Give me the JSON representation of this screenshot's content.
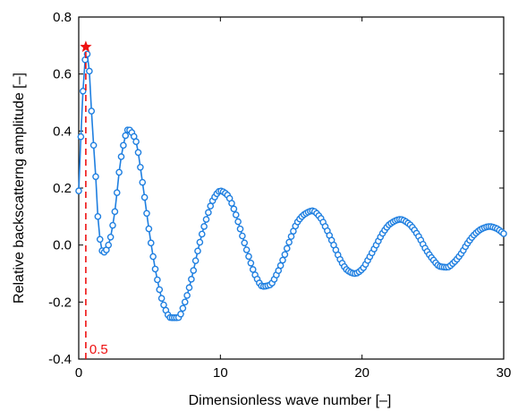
{
  "chart_data": {
    "type": "scatter",
    "xlabel": "Dimensionless wave number [–]",
    "ylabel": "Relative backscatterng amplitude [–]",
    "xlim": [
      0,
      30
    ],
    "ylim": [
      -0.4,
      0.8
    ],
    "x_ticks": [
      0,
      10,
      20,
      30
    ],
    "y_ticks": [
      -0.4,
      -0.2,
      0.0,
      0.2,
      0.4,
      0.6,
      0.8
    ],
    "x_tick_labels": [
      "0",
      "10",
      "20",
      "30"
    ],
    "y_tick_labels": [
      "-0.4",
      "-0.2",
      "0.0",
      "0.2",
      "0.4",
      "0.6",
      "0.8"
    ],
    "grid": false,
    "series_color": "#1f7fe0",
    "marker": "open-circle",
    "x_step": 0.15,
    "curve_points": [
      {
        "x": 0.0,
        "y": 0.19
      },
      {
        "x": 0.15,
        "y": 0.38
      },
      {
        "x": 0.3,
        "y": 0.54
      },
      {
        "x": 0.45,
        "y": 0.65
      },
      {
        "x": 0.6,
        "y": 0.67
      },
      {
        "x": 0.75,
        "y": 0.61
      },
      {
        "x": 0.9,
        "y": 0.47
      },
      {
        "x": 1.05,
        "y": 0.35
      },
      {
        "x": 1.2,
        "y": 0.24
      },
      {
        "x": 1.35,
        "y": 0.1
      },
      {
        "x": 1.5,
        "y": 0.02
      },
      {
        "x": 1.65,
        "y": -0.02
      },
      {
        "x": 1.8,
        "y": -0.025
      },
      {
        "x": 2.1,
        "y": 0.0
      },
      {
        "x": 2.5,
        "y": 0.1
      },
      {
        "x": 3.0,
        "y": 0.31
      },
      {
        "x": 3.5,
        "y": 0.405
      },
      {
        "x": 4.0,
        "y": 0.37
      },
      {
        "x": 4.5,
        "y": 0.22
      },
      {
        "x": 5.0,
        "y": 0.04
      },
      {
        "x": 5.5,
        "y": -0.11
      },
      {
        "x": 6.0,
        "y": -0.21
      },
      {
        "x": 6.5,
        "y": -0.255
      },
      {
        "x": 7.0,
        "y": -0.255
      },
      {
        "x": 7.5,
        "y": -0.2
      },
      {
        "x": 8.0,
        "y": -0.11
      },
      {
        "x": 8.5,
        "y": 0.0
      },
      {
        "x": 9.0,
        "y": 0.09
      },
      {
        "x": 9.5,
        "y": 0.16
      },
      {
        "x": 10.0,
        "y": 0.19
      },
      {
        "x": 10.5,
        "y": 0.175
      },
      {
        "x": 11.0,
        "y": 0.12
      },
      {
        "x": 11.5,
        "y": 0.04
      },
      {
        "x": 12.0,
        "y": -0.04
      },
      {
        "x": 12.5,
        "y": -0.11
      },
      {
        "x": 13.0,
        "y": -0.145
      },
      {
        "x": 13.5,
        "y": -0.14
      },
      {
        "x": 14.0,
        "y": -0.1
      },
      {
        "x": 14.5,
        "y": -0.04
      },
      {
        "x": 15.0,
        "y": 0.03
      },
      {
        "x": 15.5,
        "y": 0.085
      },
      {
        "x": 16.0,
        "y": 0.11
      },
      {
        "x": 16.5,
        "y": 0.12
      },
      {
        "x": 17.0,
        "y": 0.1
      },
      {
        "x": 17.5,
        "y": 0.055
      },
      {
        "x": 18.0,
        "y": 0.0
      },
      {
        "x": 18.5,
        "y": -0.055
      },
      {
        "x": 19.0,
        "y": -0.09
      },
      {
        "x": 19.5,
        "y": -0.1
      },
      {
        "x": 20.0,
        "y": -0.085
      },
      {
        "x": 20.5,
        "y": -0.045
      },
      {
        "x": 21.0,
        "y": 0.0
      },
      {
        "x": 21.5,
        "y": 0.045
      },
      {
        "x": 22.0,
        "y": 0.075
      },
      {
        "x": 22.7,
        "y": 0.09
      },
      {
        "x": 23.3,
        "y": 0.075
      },
      {
        "x": 24.0,
        "y": 0.03
      },
      {
        "x": 24.5,
        "y": -0.015
      },
      {
        "x": 25.0,
        "y": -0.05
      },
      {
        "x": 25.5,
        "y": -0.075
      },
      {
        "x": 26.0,
        "y": -0.078
      },
      {
        "x": 26.5,
        "y": -0.06
      },
      {
        "x": 27.0,
        "y": -0.03
      },
      {
        "x": 27.5,
        "y": 0.01
      },
      {
        "x": 28.0,
        "y": 0.04
      },
      {
        "x": 28.5,
        "y": 0.058
      },
      {
        "x": 29.0,
        "y": 0.065
      },
      {
        "x": 29.5,
        "y": 0.058
      },
      {
        "x": 30.0,
        "y": 0.04
      }
    ],
    "peak_marker": {
      "x": 0.5,
      "y": 0.695,
      "color": "#ee1111",
      "shape": "star"
    },
    "reference_line": {
      "x": 0.5,
      "color": "#ee1111",
      "style": "dashed"
    },
    "annotation": {
      "text": "0.5",
      "color": "#ee1111"
    }
  }
}
